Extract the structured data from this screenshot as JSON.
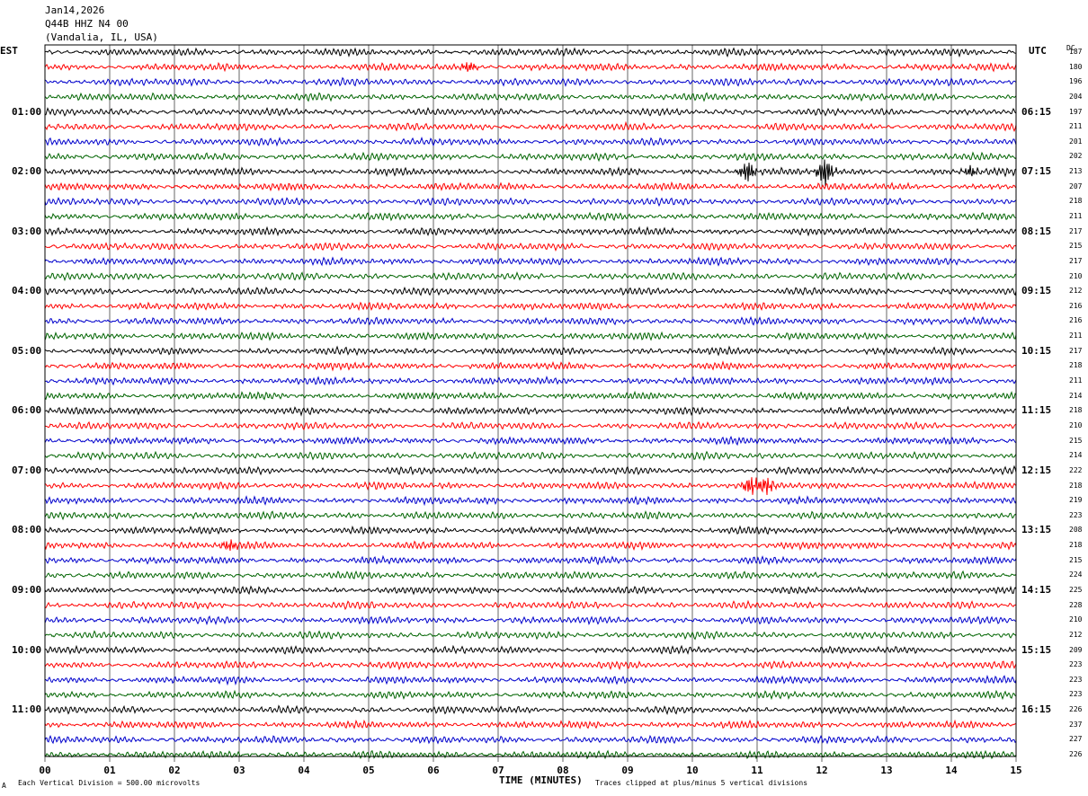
{
  "header": {
    "date": "Jan14,2026",
    "station": "Q44B HHZ N4 00",
    "location": "(Vandalia, IL, USA)"
  },
  "left_axis_label": "EST",
  "right_axis_label": "UTC",
  "dc_label": "DC",
  "footer": {
    "scale_note": "Each Vertical Division =  500.00 microvolts",
    "xlabel": "TIME (MINUTES)",
    "clip_note": "Traces clipped at plus/minus 5 vertical divisions",
    "corner_mark": "A"
  },
  "chart_data": {
    "type": "line",
    "title": "Jan14,2026 Q44B HHZ N4 00 (Vandalia, IL, USA)",
    "xlabel": "TIME (MINUTES)",
    "ylabel": "",
    "xlim": [
      0,
      15
    ],
    "x_ticks": [
      "00",
      "01",
      "02",
      "03",
      "04",
      "05",
      "06",
      "07",
      "08",
      "09",
      "10",
      "11",
      "12",
      "13",
      "14",
      "15"
    ],
    "trace_colors": [
      "#000000",
      "#ff0000",
      "#0000cc",
      "#006400"
    ],
    "left_time_labels": [
      {
        "row": 4,
        "label": "01:00"
      },
      {
        "row": 8,
        "label": "02:00"
      },
      {
        "row": 12,
        "label": "03:00"
      },
      {
        "row": 16,
        "label": "04:00"
      },
      {
        "row": 20,
        "label": "05:00"
      },
      {
        "row": 24,
        "label": "06:00"
      },
      {
        "row": 28,
        "label": "07:00"
      },
      {
        "row": 32,
        "label": "08:00"
      },
      {
        "row": 36,
        "label": "09:00"
      },
      {
        "row": 40,
        "label": "10:00"
      },
      {
        "row": 44,
        "label": "11:00"
      }
    ],
    "right_time_labels": [
      {
        "row": 4,
        "label": "06:15"
      },
      {
        "row": 8,
        "label": "07:15"
      },
      {
        "row": 12,
        "label": "08:15"
      },
      {
        "row": 16,
        "label": "09:15"
      },
      {
        "row": 20,
        "label": "10:15"
      },
      {
        "row": 24,
        "label": "11:15"
      },
      {
        "row": 28,
        "label": "12:15"
      },
      {
        "row": 32,
        "label": "13:15"
      },
      {
        "row": 36,
        "label": "14:15"
      },
      {
        "row": 40,
        "label": "15:15"
      },
      {
        "row": 44,
        "label": "16:15"
      }
    ],
    "dc_offsets": [
      "187",
      "180",
      "196",
      "204",
      "197",
      "211",
      "201",
      "202",
      "213",
      "207",
      "218",
      "211",
      "217",
      "215",
      "217",
      "210",
      "212",
      "216",
      "216",
      "211",
      "217",
      "218",
      "211",
      "214",
      "218",
      "210",
      "215",
      "214",
      "222",
      "218",
      "219",
      "223",
      "208",
      "218",
      "215",
      "224",
      "225",
      "228",
      "210",
      "212",
      "209",
      "223",
      "223",
      "223",
      "226",
      "237",
      "227",
      "226"
    ],
    "events": [
      {
        "row": 8,
        "minute": 10.85,
        "amplitude": 2.2
      },
      {
        "row": 8,
        "minute": 12.05,
        "amplitude": 2.8
      },
      {
        "row": 8,
        "minute": 14.3,
        "amplitude": 1.0
      },
      {
        "row": 29,
        "minute": 10.9,
        "amplitude": 1.8
      },
      {
        "row": 29,
        "minute": 11.15,
        "amplitude": 1.6
      },
      {
        "row": 1,
        "minute": 6.55,
        "amplitude": 1.0
      },
      {
        "row": 33,
        "minute": 2.85,
        "amplitude": 1.0
      }
    ]
  }
}
